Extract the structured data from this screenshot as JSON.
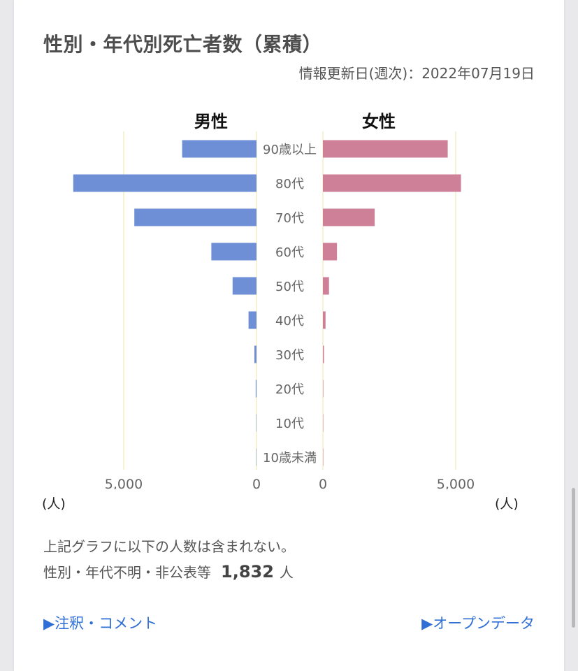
{
  "card": {
    "title": "性別・年代別死亡者数（累積）",
    "updated": "情報更新日(週次)：2022年07月19日"
  },
  "chart_data": {
    "type": "bar",
    "orientation": "horizontal-butterfly",
    "categories": [
      "90歳以上",
      "80代",
      "70代",
      "60代",
      "50代",
      "40代",
      "30代",
      "20代",
      "10代",
      "10歳未満"
    ],
    "series": [
      {
        "name": "男性",
        "values": [
          2800,
          6900,
          4600,
          1700,
          900,
          300,
          80,
          30,
          10,
          5
        ]
      },
      {
        "name": "女性",
        "values": [
          4700,
          5200,
          1950,
          530,
          230,
          100,
          40,
          15,
          5,
          3
        ]
      }
    ],
    "xlim": [
      0,
      8500
    ],
    "tick_labels": [
      "5,000",
      "0",
      "0",
      "5,000"
    ],
    "unit_label": "(人)",
    "colors": {
      "male": "#6e8fd6",
      "female": "#ce8098",
      "grid": "#f4efc6"
    }
  },
  "notes": {
    "line1": "上記グラフに以下の人数は含まれない。",
    "line2_label": "性別・年代不明・非公表等",
    "line2_value": "1,832",
    "line2_unit": "人"
  },
  "links": {
    "comments": "▶注釈・コメント",
    "open_data": "▶オープンデータ"
  }
}
